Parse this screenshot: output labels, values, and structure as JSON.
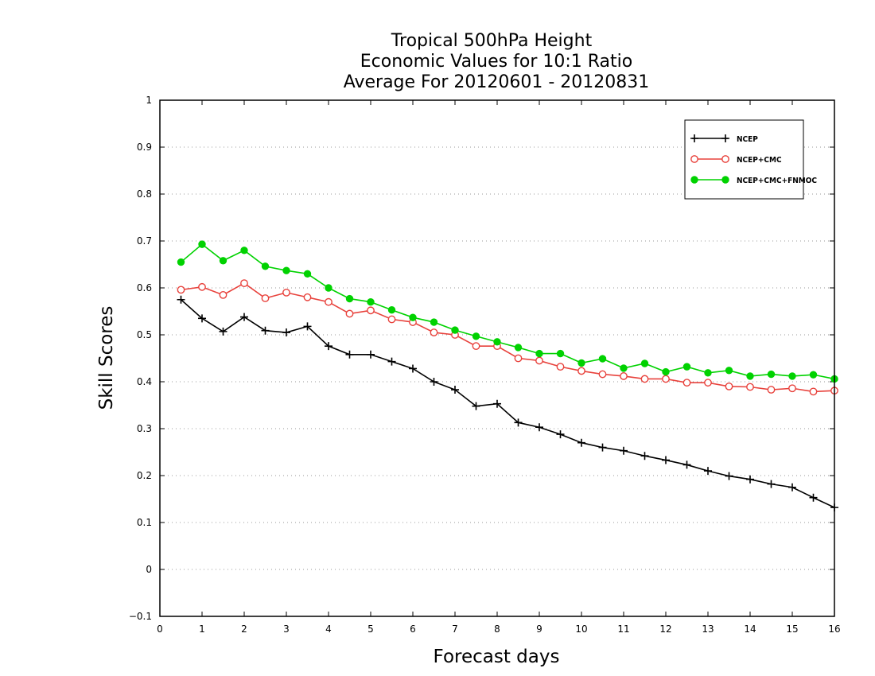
{
  "chart_data": {
    "type": "line",
    "title": [
      "Tropical 500hPa Height",
      "Economic Values for 10:1 Ratio",
      "Average For 20120601 - 20120831"
    ],
    "xlabel": "Forecast days",
    "ylabel": "Skill Scores",
    "xlim": [
      0,
      16
    ],
    "ylim": [
      -0.1,
      1
    ],
    "xticks": [
      "0",
      "1",
      "2",
      "3",
      "4",
      "5",
      "6",
      "7",
      "8",
      "9",
      "10",
      "11",
      "12",
      "13",
      "14",
      "15",
      "16"
    ],
    "yticks": [
      "−0.1",
      "0",
      "0.1",
      "0.2",
      "0.3",
      "0.4",
      "0.5",
      "0.6",
      "0.7",
      "0.8",
      "0.9",
      "1"
    ],
    "grid": "horizontal-dotted",
    "legend_position": "top-right",
    "x": [
      0.5,
      1,
      1.5,
      2,
      2.5,
      3,
      3.5,
      4,
      4.5,
      5,
      5.5,
      6,
      6.5,
      7,
      7.5,
      8,
      8.5,
      9,
      9.5,
      10,
      10.5,
      11,
      11.5,
      12,
      12.5,
      13,
      13.5,
      14,
      14.5,
      15,
      15.5,
      16
    ],
    "series": [
      {
        "name": "NCEP",
        "color": "#000000",
        "marker": "plus",
        "values": [
          0.575,
          0.535,
          0.507,
          0.538,
          0.509,
          0.505,
          0.518,
          0.476,
          0.458,
          0.458,
          0.443,
          0.428,
          0.4,
          0.383,
          0.348,
          0.353,
          0.313,
          0.303,
          0.288,
          0.27,
          0.26,
          0.253,
          0.242,
          0.233,
          0.223,
          0.21,
          0.199,
          0.192,
          0.182,
          0.175,
          0.153,
          0.132
        ]
      },
      {
        "name": "NCEP+CMC",
        "color": "#e8423c",
        "marker": "open-circle",
        "values": [
          0.596,
          0.602,
          0.585,
          0.61,
          0.578,
          0.59,
          0.58,
          0.57,
          0.545,
          0.552,
          0.533,
          0.527,
          0.505,
          0.5,
          0.476,
          0.476,
          0.45,
          0.445,
          0.432,
          0.423,
          0.416,
          0.412,
          0.406,
          0.406,
          0.398,
          0.398,
          0.39,
          0.389,
          0.383,
          0.386,
          0.379,
          0.381
        ]
      },
      {
        "name": "NCEP+CMC+FNMOC",
        "color": "#00d200",
        "marker": "filled-circle",
        "values": [
          0.655,
          0.693,
          0.658,
          0.68,
          0.646,
          0.637,
          0.63,
          0.6,
          0.577,
          0.57,
          0.553,
          0.537,
          0.527,
          0.51,
          0.497,
          0.485,
          0.473,
          0.46,
          0.46,
          0.44,
          0.449,
          0.429,
          0.439,
          0.421,
          0.432,
          0.419,
          0.424,
          0.412,
          0.416,
          0.412,
          0.415,
          0.406
        ]
      }
    ]
  }
}
